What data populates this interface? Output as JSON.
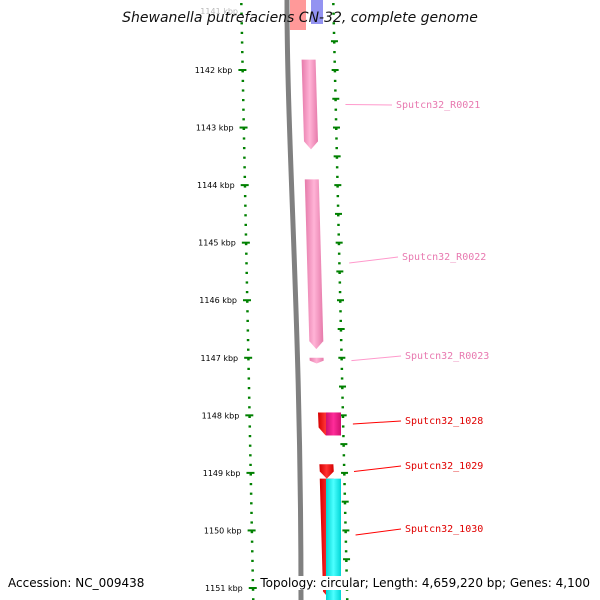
{
  "title": "Shewanella putrefaciens CN-32, complete genome",
  "footer": {
    "accession": "Accession: NC_009438",
    "topology": "Topology: circular; Length: 4,659,220 bp; Genes: 4,100"
  },
  "ruler": {
    "unit": "kbp",
    "ticks": [
      {
        "kbp": 1142,
        "label": "1142 kbp"
      },
      {
        "kbp": 1143,
        "label": "1143 kbp"
      },
      {
        "kbp": 1144,
        "label": "1144 kbp"
      },
      {
        "kbp": 1145,
        "label": "1145 kbp"
      },
      {
        "kbp": 1146,
        "label": "1146 kbp"
      },
      {
        "kbp": 1147,
        "label": "1147 kbp"
      },
      {
        "kbp": 1148,
        "label": "1148 kbp"
      },
      {
        "kbp": 1149,
        "label": "1149 kbp"
      },
      {
        "kbp": 1150,
        "label": "1150 kbp"
      },
      {
        "kbp": 1151,
        "label": "1151 kbp"
      }
    ],
    "partial_top_label": "1141 kbp"
  },
  "features": [
    {
      "label": "Sputcn32_R0021",
      "kind": "rRNA",
      "color": "#ff99cc",
      "start_kbp": 1141.82,
      "end_kbp": 1143.38,
      "strand": 1
    },
    {
      "label": "Sputcn32_R0022",
      "kind": "rRNA",
      "color": "#ff99cc",
      "start_kbp": 1143.9,
      "end_kbp": 1146.85,
      "strand": 1
    },
    {
      "label": "Sputcn32_R0023",
      "kind": "rRNA",
      "color": "#ff99cc",
      "start_kbp": 1147.0,
      "end_kbp": 1147.1,
      "strand": 1
    },
    {
      "label": "Sputcn32_1028",
      "kind": "CDS",
      "color": "#ff0000",
      "start_kbp": 1147.95,
      "end_kbp": 1148.35,
      "strand": 1
    },
    {
      "label": "Sputcn32_1029",
      "kind": "CDS",
      "color": "#ff0000",
      "start_kbp": 1148.85,
      "end_kbp": 1149.1,
      "strand": 1
    },
    {
      "label": "Sputcn32_1030",
      "kind": "CDS",
      "color": "#ff0000",
      "start_kbp": 1149.1,
      "end_kbp": 1151.2,
      "strand": 1
    }
  ],
  "extra_tracks": {
    "magenta_color": "#ff1493",
    "cyan_color": "#00ffff",
    "blue_color": "#8080ee",
    "backbone_color": "#808080",
    "tick_color": "#008000"
  }
}
